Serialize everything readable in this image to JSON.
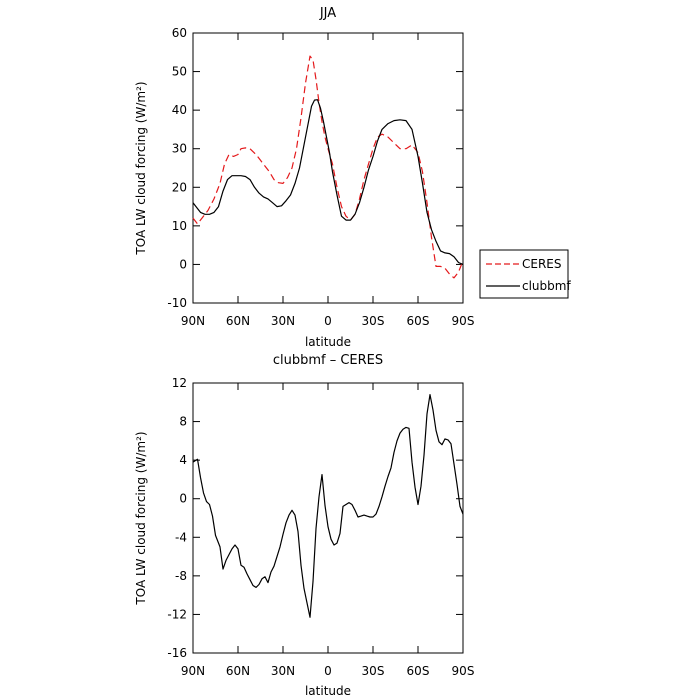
{
  "chart_data": [
    {
      "type": "line",
      "title": "JJA",
      "xlabel": "latitude",
      "ylabel": "TOA LW cloud forcing (W/m²)",
      "ylim": [
        -10,
        60
      ],
      "yticks": [
        -10,
        0,
        10,
        20,
        30,
        40,
        50,
        60
      ],
      "xlim": [
        90,
        -90
      ],
      "xticks": [
        90,
        60,
        30,
        0,
        -30,
        -60,
        -90
      ],
      "xtick_labels": [
        "90N",
        "60N",
        "30N",
        "0",
        "30S",
        "60S",
        "90S"
      ],
      "legend_position": "outside-right",
      "series": [
        {
          "name": "CERES",
          "color": "#e41a1c",
          "dash": "dashed",
          "x": [
            90,
            87,
            84,
            80,
            76,
            72,
            69,
            66,
            63,
            60,
            58,
            55,
            52,
            48,
            45,
            42,
            39,
            36,
            33,
            30,
            27,
            24,
            21,
            18,
            15,
            12,
            10,
            8,
            6,
            4,
            2,
            0,
            -3,
            -6,
            -9,
            -12,
            -15,
            -18,
            -21,
            -24,
            -27,
            -30,
            -33,
            -36,
            -40,
            -44,
            -48,
            -52,
            -56,
            -60,
            -63,
            -66,
            -69,
            -72,
            -75,
            -78,
            -81,
            -84,
            -87,
            -90
          ],
          "values": [
            12,
            10.5,
            12,
            14,
            17,
            21,
            26,
            28.5,
            28,
            28.5,
            30,
            30.2,
            30,
            28.5,
            27,
            25.5,
            24,
            22,
            21.2,
            21,
            22.5,
            25,
            30,
            38,
            47,
            54,
            53,
            48,
            42,
            37,
            33,
            30,
            26,
            20,
            15,
            12.5,
            11.5,
            13,
            17,
            22,
            26,
            30,
            33,
            33.8,
            33,
            31.5,
            30,
            30,
            31,
            29,
            24,
            16,
            7,
            -0.5,
            -0.5,
            -1,
            -2.5,
            -3.5,
            -2,
            1
          ]
        },
        {
          "name": "clubbmf",
          "color": "#000000",
          "dash": "solid",
          "x": [
            90,
            88,
            85,
            82,
            79,
            76,
            73,
            70,
            67,
            64,
            61,
            58,
            55,
            52,
            49,
            46,
            43,
            40,
            37,
            34,
            31,
            28,
            25,
            22,
            19,
            16,
            13,
            11,
            9,
            7,
            5,
            3,
            1,
            -1,
            -3,
            -6,
            -9,
            -12,
            -15,
            -18,
            -21,
            -24,
            -27,
            -30,
            -33,
            -36,
            -40,
            -44,
            -48,
            -52,
            -56,
            -60,
            -63,
            -66,
            -69,
            -72,
            -75,
            -78,
            -81,
            -84,
            -87,
            -90
          ],
          "values": [
            16,
            15,
            13.5,
            13,
            13,
            13.5,
            15,
            19,
            22,
            23,
            23,
            23,
            22.8,
            22,
            20,
            18.5,
            17.5,
            17,
            16,
            15,
            15.2,
            16.5,
            18,
            21,
            25,
            31,
            37,
            41,
            42.6,
            42.7,
            40.5,
            37,
            33,
            29,
            24,
            18,
            12.5,
            11.5,
            11.5,
            13,
            16,
            20,
            24.5,
            28,
            32,
            35,
            36.5,
            37.3,
            37.5,
            37.3,
            35,
            28,
            21,
            13.5,
            9,
            6,
            3.5,
            3,
            2.8,
            2,
            0.5,
            0
          ]
        }
      ]
    },
    {
      "type": "line",
      "title": "clubbmf – CERES",
      "xlabel": "latitude",
      "ylabel": "TOA LW cloud forcing (W/m²)",
      "ylim": [
        -16,
        12
      ],
      "yticks": [
        -16,
        -12,
        -8,
        -4,
        0,
        4,
        8,
        12
      ],
      "xlim": [
        90,
        -90
      ],
      "xticks": [
        90,
        60,
        30,
        0,
        -30,
        -60,
        -90
      ],
      "xtick_labels": [
        "90N",
        "60N",
        "30N",
        "0",
        "30S",
        "60S",
        "90S"
      ],
      "series": [
        {
          "color": "#000000",
          "dash": "solid",
          "x": [
            90,
            87,
            85,
            83,
            81,
            79,
            77,
            75,
            72,
            70,
            68,
            66,
            64,
            62,
            60,
            58,
            56,
            54,
            52,
            50,
            48,
            46,
            44,
            42,
            40,
            38,
            36,
            34,
            32,
            30,
            28,
            26,
            24,
            22,
            20,
            18,
            16,
            14,
            12,
            10,
            8,
            6,
            4,
            2,
            0,
            -2,
            -4,
            -6,
            -8,
            -10,
            -12,
            -14,
            -16,
            -18,
            -20,
            -22,
            -24,
            -26,
            -28,
            -30,
            -32,
            -34,
            -36,
            -38,
            -40,
            -42,
            -44,
            -46,
            -48,
            -50,
            -52,
            -54,
            -56,
            -58,
            -60,
            -62,
            -64,
            -66,
            -68,
            -70,
            -72,
            -74,
            -76,
            -78,
            -80,
            -82,
            -84,
            -86,
            -88,
            -90
          ],
          "values": [
            3.8,
            4.1,
            2.2,
            0.6,
            -0.3,
            -0.6,
            -1.8,
            -3.8,
            -5,
            -7.3,
            -6.4,
            -5.8,
            -5.2,
            -4.8,
            -5.2,
            -6.9,
            -7.1,
            -7.8,
            -8.4,
            -9,
            -9.2,
            -8.9,
            -8.3,
            -8.1,
            -8.7,
            -7.6,
            -7,
            -6,
            -5,
            -3.7,
            -2.5,
            -1.7,
            -1.2,
            -1.7,
            -3.4,
            -6.9,
            -9.3,
            -10.8,
            -12.3,
            -8.6,
            -3.1,
            0.2,
            2.5,
            -0.7,
            -2.9,
            -4.2,
            -4.8,
            -4.6,
            -3.6,
            -0.8,
            -0.6,
            -0.4,
            -0.6,
            -1.2,
            -1.9,
            -1.8,
            -1.7,
            -1.8,
            -1.9,
            -1.9,
            -1.6,
            -0.8,
            0.2,
            1.3,
            2.3,
            3.2,
            4.8,
            6,
            6.8,
            7.2,
            7.4,
            7.3,
            3.8,
            1.2,
            -0.6,
            1.3,
            4.5,
            8.8,
            10.8,
            9.2,
            7.1,
            5.9,
            5.6,
            6.2,
            6.1,
            5.7,
            3.6,
            1.5,
            -0.8,
            -1.6
          ]
        }
      ]
    }
  ]
}
